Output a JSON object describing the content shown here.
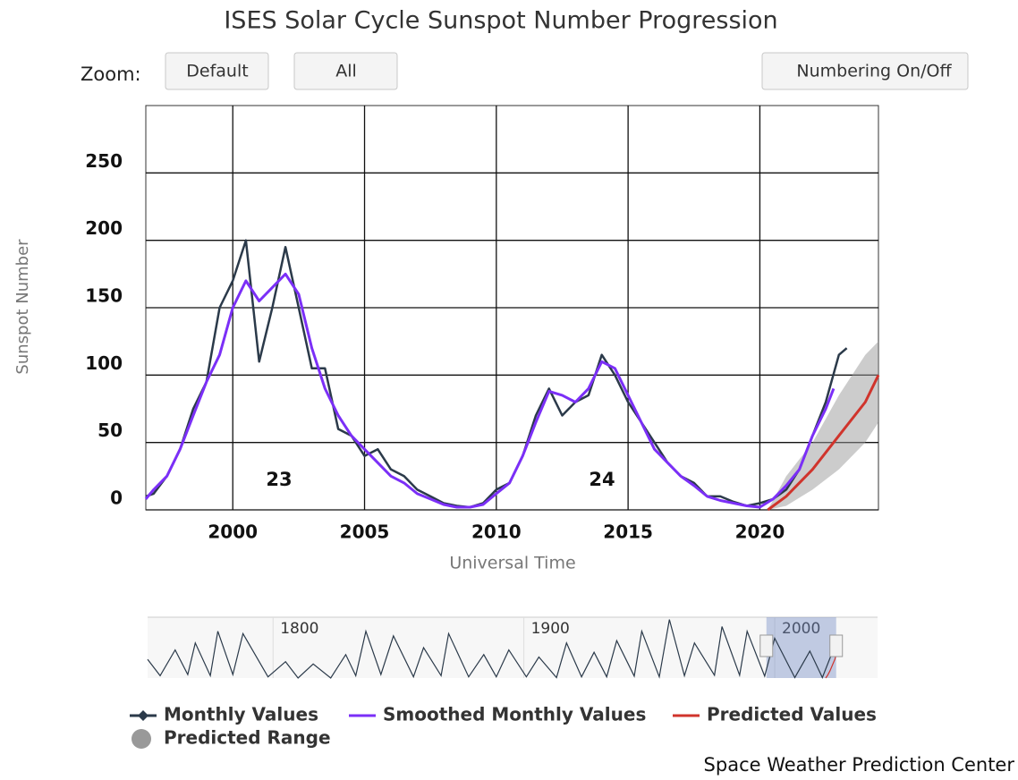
{
  "chart_data": {
    "type": "line",
    "title": "ISES Solar Cycle Sunspot Number Progression",
    "zoom_label": "Zoom:",
    "buttons": [
      "Default",
      "All",
      "Numbering On/Off"
    ],
    "xlabel": "Universal Time",
    "ylabel": "Sunspot Number",
    "xlim": [
      1996.7,
      2024.5
    ],
    "xticks": [
      2000,
      2005,
      2010,
      2015,
      2020
    ],
    "ylim": [
      0,
      300
    ],
    "yticks": [
      0,
      50,
      100,
      150,
      200,
      250
    ],
    "grid": true,
    "annotations": [
      "23",
      "24"
    ],
    "series": [
      {
        "name": "Monthly Values",
        "color": "#2b3a4a",
        "x": [
          1996.7,
          1997,
          1997.5,
          1998,
          1998.5,
          1999,
          1999.5,
          2000,
          2000.5,
          2001,
          2001.5,
          2002,
          2002.5,
          2003,
          2003.5,
          2004,
          2004.5,
          2005,
          2005.5,
          2006,
          2006.5,
          2007,
          2007.5,
          2008,
          2008.5,
          2009,
          2009.5,
          2010,
          2010.5,
          2011,
          2011.5,
          2012,
          2012.5,
          2013,
          2013.5,
          2014,
          2014.5,
          2015,
          2015.5,
          2016,
          2016.5,
          2017,
          2017.5,
          2018,
          2018.5,
          2019,
          2019.5,
          2020,
          2020.5,
          2021,
          2021.5,
          2022,
          2022.5,
          2023,
          2023.3
        ],
        "values": [
          10,
          12,
          25,
          45,
          75,
          95,
          150,
          170,
          200,
          110,
          150,
          195,
          150,
          105,
          105,
          60,
          55,
          40,
          45,
          30,
          25,
          15,
          10,
          5,
          3,
          2,
          5,
          15,
          20,
          40,
          70,
          90,
          70,
          80,
          85,
          115,
          100,
          80,
          65,
          50,
          35,
          25,
          20,
          10,
          10,
          6,
          3,
          5,
          8,
          15,
          30,
          55,
          80,
          115,
          120
        ]
      },
      {
        "name": "Smoothed Monthly Values",
        "color": "#7b2ff7",
        "x": [
          1996.7,
          1997,
          1997.5,
          1998,
          1998.5,
          1999,
          1999.5,
          2000,
          2000.5,
          2001,
          2001.5,
          2002,
          2002.5,
          2003,
          2003.5,
          2004,
          2004.5,
          2005,
          2005.5,
          2006,
          2006.5,
          2007,
          2007.5,
          2008,
          2008.5,
          2009,
          2009.5,
          2010,
          2010.5,
          2011,
          2011.5,
          2012,
          2012.5,
          2013,
          2013.5,
          2014,
          2014.5,
          2015,
          2015.5,
          2016,
          2016.5,
          2017,
          2017.5,
          2018,
          2018.5,
          2019,
          2019.5,
          2020,
          2020.5,
          2021,
          2021.5,
          2022,
          2022.5,
          2022.8
        ],
        "values": [
          8,
          15,
          25,
          45,
          70,
          95,
          115,
          150,
          170,
          155,
          165,
          175,
          160,
          120,
          90,
          70,
          55,
          45,
          35,
          25,
          20,
          12,
          8,
          4,
          2,
          2,
          4,
          12,
          20,
          40,
          65,
          88,
          85,
          80,
          90,
          110,
          105,
          85,
          65,
          45,
          35,
          25,
          18,
          10,
          7,
          5,
          3,
          2,
          8,
          18,
          30,
          55,
          75,
          90
        ]
      },
      {
        "name": "Predicted Values",
        "color": "#d0342c",
        "x": [
          2020.3,
          2021,
          2022,
          2023,
          2024,
          2024.5
        ],
        "values": [
          0,
          10,
          30,
          55,
          80,
          100
        ]
      },
      {
        "name": "Predicted Range",
        "color": "#999999",
        "x": [
          2020.3,
          2021,
          2022,
          2023,
          2024,
          2024.5
        ],
        "low": [
          0,
          3,
          15,
          30,
          50,
          65
        ],
        "high": [
          0,
          25,
          50,
          85,
          115,
          125
        ]
      }
    ],
    "navigator": {
      "xlim": [
        1750,
        2041
      ],
      "ylim": [
        0,
        260
      ],
      "xticks": [
        1800,
        1900,
        2000
      ],
      "x": [
        1750,
        1755,
        1761,
        1766,
        1769,
        1775,
        1778,
        1784,
        1788,
        1798,
        1805,
        1810,
        1816,
        1823,
        1829,
        1833,
        1837,
        1843,
        1848,
        1856,
        1860,
        1867,
        1870,
        1878,
        1884,
        1889,
        1894,
        1901,
        1906,
        1913,
        1917,
        1923,
        1928,
        1933,
        1937,
        1944,
        1947,
        1954,
        1958,
        1964,
        1968,
        1976,
        1979,
        1986,
        1989,
        1996,
        2000,
        2008,
        2014,
        2019,
        2023.3
      ],
      "values": [
        80,
        10,
        120,
        15,
        150,
        10,
        200,
        15,
        190,
        5,
        70,
        0,
        60,
        0,
        100,
        10,
        200,
        15,
        180,
        5,
        130,
        10,
        190,
        5,
        100,
        5,
        120,
        5,
        90,
        2,
        150,
        5,
        110,
        5,
        160,
        8,
        200,
        5,
        250,
        10,
        150,
        12,
        220,
        12,
        200,
        8,
        170,
        2,
        115,
        2,
        120
      ]
    },
    "credit": "Space Weather Prediction Center"
  }
}
